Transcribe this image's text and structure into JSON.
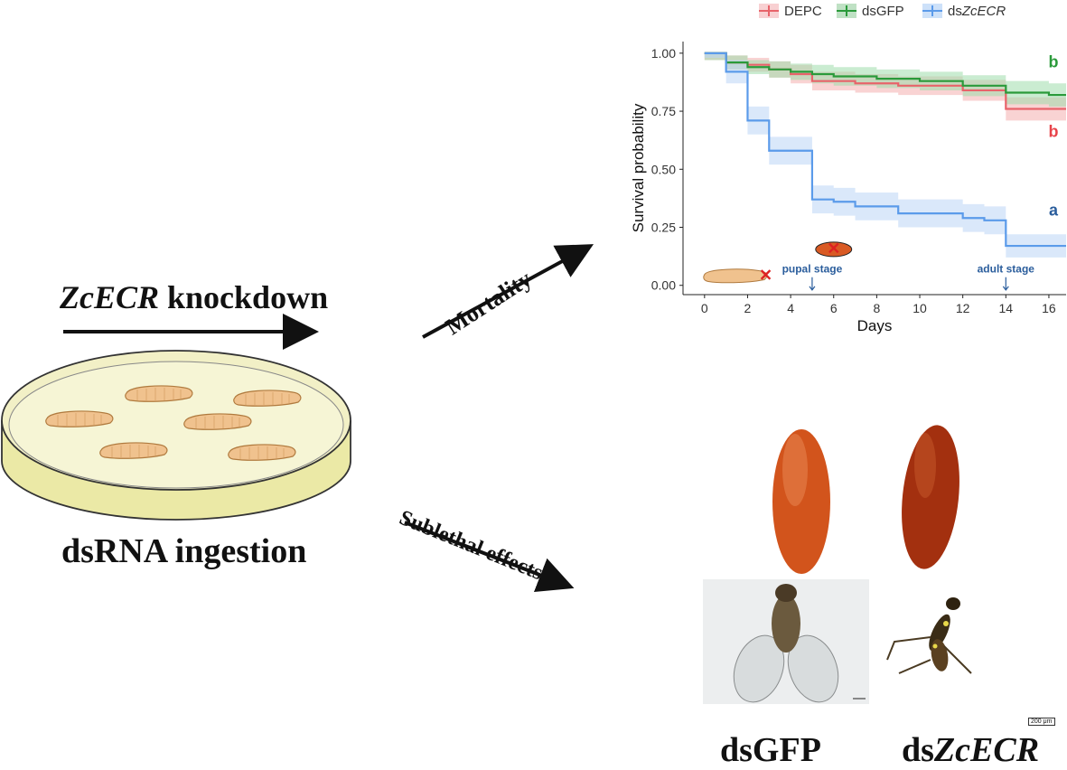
{
  "left_panel": {
    "knockdown_gene": "ZcECR",
    "knockdown_rest": "knockdown",
    "ingestion_label": "dsRNA ingestion"
  },
  "arrows": {
    "mortality_label": "Mortality",
    "sublethal_label": "Sublethal effects"
  },
  "bottom_labels": {
    "left": "dsGFP",
    "right_prefix": "ds",
    "right_gene": "ZcECR"
  },
  "scale_bar_text": "200 μm",
  "chart_data": {
    "type": "line",
    "subtype": "step",
    "xlabel": "Days",
    "ylabel": "Survival probability",
    "xlim": [
      -1,
      16.8
    ],
    "ylim": [
      -0.04,
      1.05
    ],
    "x_ticks": [
      0,
      2,
      4,
      6,
      8,
      10,
      12,
      14,
      16
    ],
    "y_ticks": [
      "0.00",
      "0.25",
      "0.50",
      "0.75",
      "1.00"
    ],
    "legend": [
      {
        "prefix": "DEPC",
        "italic": "",
        "color": "#e8636a"
      },
      {
        "prefix": "dsGFP",
        "italic": "",
        "color": "#2a9a3a"
      },
      {
        "prefix": "ds",
        "italic": "ZcECR",
        "color": "#5b9bea"
      }
    ],
    "series": [
      {
        "name": "DEPC",
        "color": "#e8636a",
        "band_color": "#f4aeae",
        "x": [
          0,
          1,
          2,
          3,
          4,
          5,
          7,
          9,
          12,
          14,
          16.8
        ],
        "y": [
          1.0,
          0.96,
          0.95,
          0.93,
          0.91,
          0.88,
          0.87,
          0.86,
          0.84,
          0.76,
          0.76
        ],
        "ci": [
          0.03,
          0.03,
          0.03,
          0.035,
          0.04,
          0.04,
          0.04,
          0.04,
          0.045,
          0.05,
          0.05
        ],
        "sig_letter": "b"
      },
      {
        "name": "dsGFP",
        "color": "#2a9a3a",
        "band_color": "#9fdcac",
        "x": [
          0,
          1,
          2,
          3,
          4,
          5,
          6,
          8,
          10,
          12,
          14,
          16,
          16.8
        ],
        "y": [
          1.0,
          0.96,
          0.94,
          0.93,
          0.92,
          0.91,
          0.9,
          0.89,
          0.88,
          0.86,
          0.83,
          0.82,
          0.82
        ],
        "ci": [
          0.03,
          0.03,
          0.03,
          0.035,
          0.035,
          0.04,
          0.04,
          0.04,
          0.04,
          0.045,
          0.05,
          0.05,
          0.05
        ],
        "sig_letter": "b"
      },
      {
        "name": "dsZcECR",
        "color": "#5b9bea",
        "band_color": "#bcd5f5",
        "x": [
          0,
          1,
          2,
          3,
          5,
          6,
          7,
          9,
          12,
          13,
          14,
          16.8
        ],
        "y": [
          1.0,
          0.92,
          0.71,
          0.58,
          0.37,
          0.36,
          0.34,
          0.31,
          0.29,
          0.28,
          0.17,
          0.17
        ],
        "ci": [
          0.02,
          0.05,
          0.06,
          0.06,
          0.06,
          0.06,
          0.06,
          0.06,
          0.06,
          0.06,
          0.05,
          0.05
        ],
        "sig_letter": "a"
      }
    ],
    "annotations": [
      {
        "text": "pupal stage",
        "x": 5
      },
      {
        "text": "adult stage",
        "x": 14
      }
    ]
  }
}
